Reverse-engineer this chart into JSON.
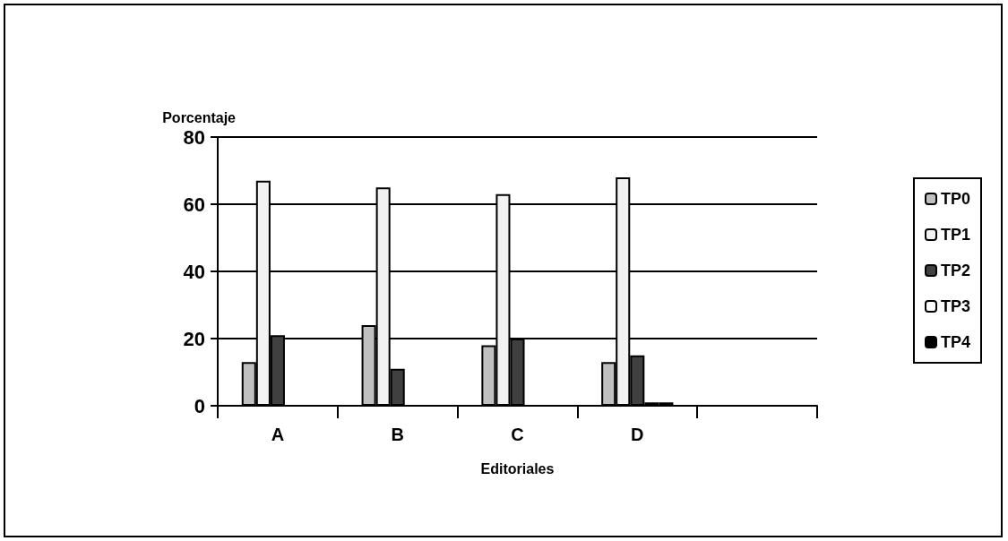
{
  "chart_data": {
    "type": "bar",
    "ylabel": "Porcentaje",
    "xlabel": "Editoriales",
    "categories": [
      "A",
      "B",
      "C",
      "D",
      null
    ],
    "series": [
      {
        "name": "TP0",
        "color": "#c0c0c0",
        "values": [
          13,
          24,
          18,
          13,
          null
        ]
      },
      {
        "name": "TP1",
        "color": "#f2f2f2",
        "values": [
          67,
          65,
          63,
          68,
          null
        ]
      },
      {
        "name": "TP2",
        "color": "#404040",
        "values": [
          21,
          11,
          20,
          15,
          null
        ]
      },
      {
        "name": "TP3",
        "color": "#ffffff",
        "values": [
          null,
          null,
          null,
          1,
          null
        ]
      },
      {
        "name": "TP4",
        "color": "#000000",
        "values": [
          null,
          null,
          null,
          1,
          null
        ]
      }
    ],
    "ylim": [
      0,
      80
    ],
    "yticks": [
      0,
      20,
      40,
      60,
      80
    ],
    "grid": "y",
    "legend": "right"
  }
}
